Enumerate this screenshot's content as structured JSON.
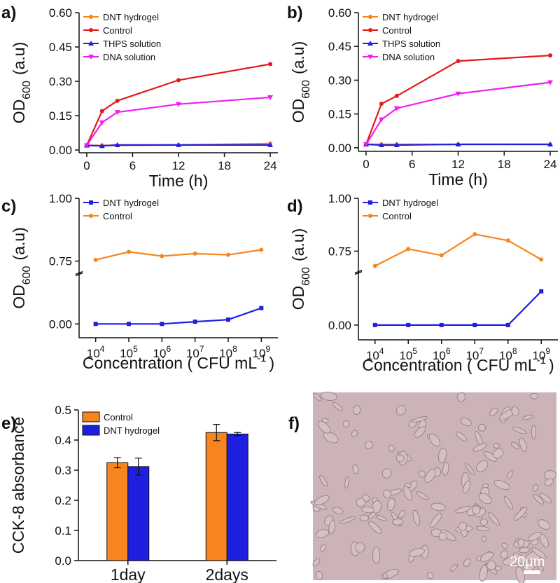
{
  "chart_data": [
    {
      "type": "line",
      "panel_label": "a)",
      "x": [
        0,
        2,
        4,
        12,
        24
      ],
      "series": [
        {
          "name": "DNT hydrogel",
          "color": "#f7851e",
          "marker": "circle",
          "values": [
            0.02,
            0.02,
            0.02,
            0.022,
            0.028
          ]
        },
        {
          "name": "Control",
          "color": "#e41a1c",
          "marker": "circle",
          "values": [
            0.02,
            0.17,
            0.215,
            0.305,
            0.375
          ]
        },
        {
          "name": "THPS solution",
          "color": "#1f1fe0",
          "marker": "triangle",
          "values": [
            0.02,
            0.018,
            0.022,
            0.022,
            0.022
          ]
        },
        {
          "name": "DNA solution",
          "color": "#f21cf0",
          "marker": "triangle-down",
          "values": [
            0.02,
            0.12,
            0.165,
            0.2,
            0.23
          ]
        }
      ],
      "xlim": [
        -1,
        25
      ],
      "xticks": [
        0,
        6,
        12,
        18,
        24
      ],
      "ylim": [
        -0.012,
        0.6
      ],
      "yticks": [
        {
          "value": 0,
          "label": "0.00"
        },
        {
          "value": 0.15,
          "label": "0.15"
        },
        {
          "value": 0.3,
          "label": "0.30"
        },
        {
          "value": 0.45,
          "label": "0.45"
        },
        {
          "value": 0.6,
          "label": "0.60"
        }
      ],
      "x_label": "Time (h)",
      "y_label": {
        "main": "OD",
        "sub": "600",
        "unit": "(a.u)"
      },
      "legend": "upper left"
    },
    {
      "type": "line",
      "panel_label": "b)",
      "x": [
        0,
        2,
        4,
        12,
        24
      ],
      "series": [
        {
          "name": "DNT hydrogel",
          "color": "#f7851e",
          "marker": "circle",
          "values": [
            0.015,
            0.015,
            0.015,
            0.015,
            0.015
          ]
        },
        {
          "name": "Control",
          "color": "#e41a1c",
          "marker": "circle",
          "values": [
            0.015,
            0.195,
            0.23,
            0.385,
            0.41
          ]
        },
        {
          "name": "THPS solution",
          "color": "#1f1fe0",
          "marker": "triangle",
          "values": [
            0.015,
            0.012,
            0.012,
            0.015,
            0.015
          ]
        },
        {
          "name": "DNA solution",
          "color": "#f21cf0",
          "marker": "triangle-down",
          "values": [
            0.015,
            0.125,
            0.175,
            0.24,
            0.29
          ]
        }
      ],
      "xlim": [
        -1,
        25
      ],
      "xticks": [
        0,
        6,
        12,
        18,
        24
      ],
      "ylim": [
        -0.016,
        0.6
      ],
      "yticks": [
        {
          "value": 0,
          "label": "0.00"
        },
        {
          "value": 0.15,
          "label": "0.15"
        },
        {
          "value": 0.3,
          "label": "0.30"
        },
        {
          "value": 0.45,
          "label": "0.45"
        },
        {
          "value": 0.6,
          "label": "0.60"
        }
      ],
      "x_label": "Time (h)",
      "y_label": {
        "main": "OD",
        "sub": "600",
        "unit": "(a.u)"
      },
      "legend": "upper left"
    },
    {
      "type": "line",
      "panel_label": "c)",
      "categories": [
        {
          "base": "10",
          "exp": "4"
        },
        {
          "base": "10",
          "exp": "5"
        },
        {
          "base": "10",
          "exp": "6"
        },
        {
          "base": "10",
          "exp": "7"
        },
        {
          "base": "10",
          "exp": "8"
        },
        {
          "base": "10",
          "exp": "9"
        }
      ],
      "series": [
        {
          "name": "DNT hydrogel",
          "color": "#1f1fe0",
          "marker": "square",
          "values": [
            0,
            0,
            0,
            0.009,
            0.017,
            0.063
          ]
        },
        {
          "name": "Control",
          "color": "#f7851e",
          "marker": "circle",
          "values": [
            0.755,
            0.787,
            0.77,
            0.78,
            0.775,
            0.795
          ]
        }
      ],
      "ylim": [
        -0.055,
        1.0
      ],
      "y_break": [
        0.2,
        0.7
      ],
      "yticks": [
        {
          "value": 0,
          "label": "0.00"
        },
        {
          "value": 0.75,
          "label": "0.75"
        },
        {
          "value": 1,
          "label": "1.00"
        }
      ],
      "x_label": {
        "main": "Concentration ( CFU mL",
        "exp": "-1",
        "end": ")"
      },
      "y_label": {
        "main": "OD",
        "sub": "600",
        "unit": "(a.u)"
      },
      "legend": "upper left"
    },
    {
      "type": "line",
      "panel_label": "d)",
      "categories": [
        {
          "base": "10",
          "exp": "4"
        },
        {
          "base": "10",
          "exp": "5"
        },
        {
          "base": "10",
          "exp": "6"
        },
        {
          "base": "10",
          "exp": "7"
        },
        {
          "base": "10",
          "exp": "8"
        },
        {
          "base": "10",
          "exp": "9"
        }
      ],
      "series": [
        {
          "name": "DNT hydrogel",
          "color": "#1f1fe0",
          "marker": "square",
          "values": [
            0,
            0,
            0,
            0,
            0,
            0.16
          ]
        },
        {
          "name": "Control",
          "color": "#f7851e",
          "marker": "circle",
          "values": [
            0.68,
            0.76,
            0.73,
            0.83,
            0.8,
            0.71
          ]
        }
      ],
      "ylim": [
        -0.07,
        1.0
      ],
      "y_break": [
        0.25,
        0.65
      ],
      "yticks": [
        {
          "value": 0,
          "label": "0.00"
        },
        {
          "value": 0.75,
          "label": "0.75"
        },
        {
          "value": 1,
          "label": "1.00"
        }
      ],
      "x_label": {
        "main": "Concentration ( CFU mL",
        "exp": "-1",
        "end": ")"
      },
      "y_label": {
        "main": "OD",
        "sub": "600",
        "unit": "(a.u)"
      },
      "legend": "upper left"
    },
    {
      "type": "bar",
      "panel_label": "e)",
      "categories": [
        "1day",
        "2days"
      ],
      "series": [
        {
          "name": "Control",
          "color": "#f7851e",
          "values": [
            0.325,
            0.425
          ],
          "errors": [
            0.017,
            0.027
          ]
        },
        {
          "name": "DNT hydrogel",
          "color": "#1f1fe0",
          "values": [
            0.312,
            0.42
          ],
          "errors": [
            0.028,
            0.005
          ]
        }
      ],
      "ylim": [
        0,
        0.5
      ],
      "yticks": [
        {
          "value": 0,
          "label": "0.0"
        },
        {
          "value": 0.1,
          "label": "0.1"
        },
        {
          "value": 0.2,
          "label": "0.2"
        },
        {
          "value": 0.3,
          "label": "0.3"
        },
        {
          "value": 0.4,
          "label": "0.4"
        },
        {
          "value": 0.5,
          "label": "0.5"
        }
      ],
      "y_label": "CCK-8 absorbance",
      "legend": "upper left"
    }
  ],
  "image_panel": {
    "panel_label": "f)",
    "scale_bar": "20μm"
  }
}
